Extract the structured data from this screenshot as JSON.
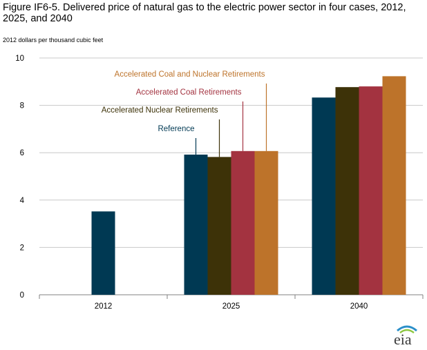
{
  "title": "Figure IF6-5. Delivered price of natural gas to the electric power sector in four cases, 2012, 2025, and 2040",
  "logo_text": "eia",
  "chart_data": {
    "type": "bar",
    "title": "Figure IF6-5. Delivered price of natural gas to the electric power sector in four cases, 2012, 2025, and 2040",
    "ylabel": "2012 dollars per thousand cubic feet",
    "xlabel": "",
    "ylim": [
      0,
      10
    ],
    "yticks": [
      0,
      2,
      4,
      6,
      8,
      10
    ],
    "categories": [
      "2012",
      "2025",
      "2040"
    ],
    "grid": true,
    "legend": "callout labels above 2025 bars",
    "series": [
      {
        "name": "Reference",
        "color": "#003953",
        "values": [
          3.52,
          5.92,
          8.33
        ]
      },
      {
        "name": "Accelerated Nuclear Retirements",
        "color": "#3d3208",
        "values": [
          null,
          5.82,
          8.77
        ]
      },
      {
        "name": "Accelerated Coal Retirements",
        "color": "#a33340",
        "values": [
          null,
          6.07,
          8.8
        ]
      },
      {
        "name": "Accelerated Coal and Nuclear Retirements",
        "color": "#bd732a",
        "values": [
          null,
          6.07,
          9.23
        ]
      }
    ]
  }
}
